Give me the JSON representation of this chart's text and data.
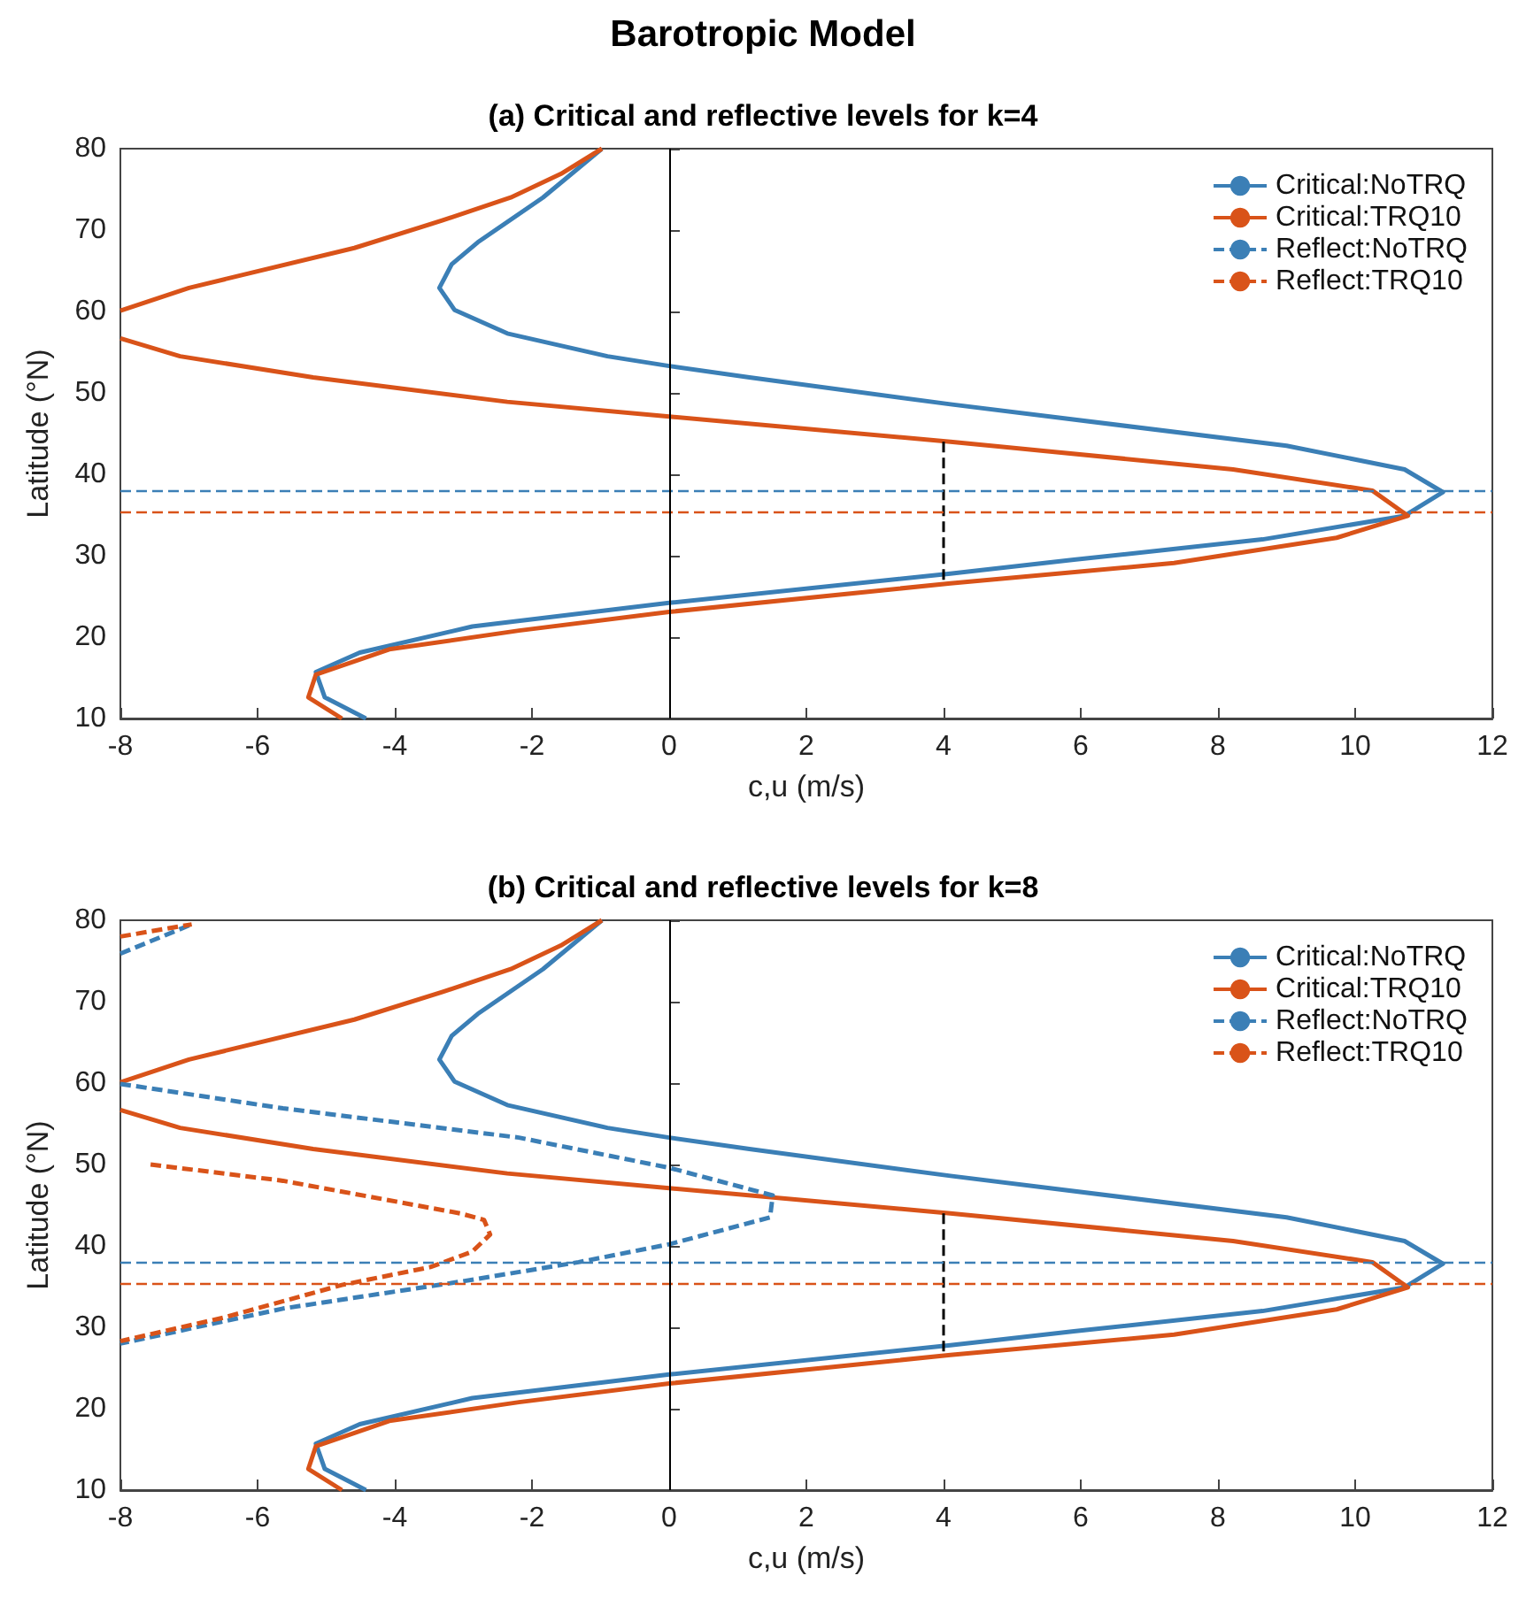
{
  "chart_data": [
    {
      "type": "other",
      "title": "Barotropic Model"
    },
    {
      "type": "line",
      "title": "(a) Critical and reflective levels for k=4",
      "xlabel": "c,u (m/s)",
      "ylabel": "Latitude (°N)",
      "xlim": [
        -8,
        12
      ],
      "xticks": [
        -8,
        -6,
        -4,
        -2,
        0,
        2,
        4,
        6,
        8,
        10,
        12
      ],
      "ylim": [
        10,
        80
      ],
      "yticks": [
        10,
        20,
        30,
        40,
        50,
        60,
        70,
        80
      ],
      "grid": false,
      "legend": "top right",
      "marker": "none",
      "series": [
        {
          "name": "Critical:NoTRQ",
          "color": "#3b7fb6",
          "line_style": "solid",
          "x": [
            -0.98,
            -1.84,
            -2.79,
            -3.17,
            -3.35,
            -3.13,
            -2.36,
            -0.9,
            0,
            1.17,
            4.1,
            9.0,
            10.72,
            11.28,
            10.72,
            8.65,
            5.9,
            4.1,
            0,
            -2.87,
            -4.51,
            -5.15,
            -5.02,
            -4.42
          ],
          "values": [
            80,
            74,
            68.5,
            65.8,
            62.9,
            60.2,
            57.3,
            54.5,
            53.3,
            51.9,
            48.6,
            43.5,
            40.6,
            37.8,
            34.9,
            32.0,
            29.5,
            27.8,
            24.2,
            21.3,
            18.1,
            15.7,
            12.6,
            10
          ]
        },
        {
          "name": "Critical:TRQ10",
          "color": "#d95319",
          "line_style": "solid",
          "x": [
            -0.98,
            -1.58,
            -2.31,
            -3.3,
            -4.59,
            -7.0,
            -8,
            null,
            -8,
            -7.13,
            -5.19,
            -2.36,
            0,
            4.1,
            8.22,
            10.25,
            10.77,
            9.73,
            7.36,
            4.1,
            0,
            -2.19,
            -4.08,
            -5.15,
            -5.26,
            -4.77
          ],
          "values": [
            80,
            76.9,
            74,
            71.2,
            67.8,
            62.9,
            60.1,
            null,
            56.7,
            54.5,
            51.9,
            48.9,
            47.1,
            44.0,
            40.6,
            38.0,
            34.9,
            32.2,
            29.1,
            26.6,
            23.1,
            20.8,
            18.5,
            15.4,
            12.6,
            10
          ]
        },
        {
          "name": "Reflect:NoTRQ",
          "color": "#3b7fb6",
          "line_style": "dashed"
        },
        {
          "name": "Reflect:TRQ10",
          "color": "#d95319",
          "line_style": "dashed"
        },
        {
          "color": "#000000",
          "line_style": "dashed",
          "x": [
            4,
            4
          ],
          "values": [
            44.0,
            26.6
          ]
        }
      ],
      "ref_lines": [
        {
          "axis": "y",
          "value": 37.9,
          "color": "#3b7fb6",
          "line_style": "dashed"
        },
        {
          "axis": "y",
          "value": 35.4,
          "color": "#d95319",
          "line_style": "dashed"
        },
        {
          "axis": "x",
          "value": 0,
          "color": "#000000",
          "line_style": "solid"
        }
      ]
    },
    {
      "type": "line",
      "title": "(b) Critical and reflective levels for k=8",
      "xlabel": "c,u (m/s)",
      "ylabel": "Latitude (°N)",
      "xlim": [
        -8,
        12
      ],
      "xticks": [
        -8,
        -6,
        -4,
        -2,
        0,
        2,
        4,
        6,
        8,
        10,
        12
      ],
      "ylim": [
        10,
        80
      ],
      "yticks": [
        10,
        20,
        30,
        40,
        50,
        60,
        70,
        80
      ],
      "grid": false,
      "legend": "top right",
      "marker": "none",
      "series": [
        {
          "name": "Critical:NoTRQ",
          "color": "#3b7fb6",
          "line_style": "solid",
          "x": [
            -0.98,
            -1.84,
            -2.79,
            -3.17,
            -3.35,
            -3.13,
            -2.36,
            -0.9,
            0,
            1.17,
            4.1,
            9.0,
            10.72,
            11.28,
            10.72,
            8.65,
            5.9,
            4.1,
            0,
            -2.87,
            -4.51,
            -5.15,
            -5.02,
            -4.42
          ],
          "values": [
            80,
            74,
            68.5,
            65.8,
            62.9,
            60.2,
            57.3,
            54.5,
            53.3,
            51.9,
            48.6,
            43.5,
            40.6,
            37.8,
            34.9,
            32.0,
            29.5,
            27.8,
            24.2,
            21.3,
            18.1,
            15.7,
            12.6,
            10
          ]
        },
        {
          "name": "Critical:TRQ10",
          "color": "#d95319",
          "line_style": "solid",
          "x": [
            -0.98,
            -1.58,
            -2.31,
            -3.3,
            -4.59,
            -7.0,
            -8,
            null,
            -8,
            -7.13,
            -5.19,
            -2.36,
            0,
            4.1,
            8.22,
            10.25,
            10.77,
            9.73,
            7.36,
            4.1,
            0,
            -2.19,
            -4.08,
            -5.15,
            -5.26,
            -4.77
          ],
          "values": [
            80,
            76.9,
            74,
            71.2,
            67.8,
            62.9,
            60.1,
            null,
            56.7,
            54.5,
            51.9,
            48.9,
            47.1,
            44.0,
            40.6,
            38.0,
            34.9,
            32.2,
            29.1,
            26.6,
            23.1,
            20.8,
            18.5,
            15.4,
            12.6,
            10
          ]
        },
        {
          "name": "Reflect:NoTRQ",
          "color": "#3b7fb6",
          "line_style": "dashed",
          "x": [
            -8,
            -6.96,
            null,
            -8,
            -5.63,
            -2.19,
            0,
            1.51,
            1.47,
            0,
            -1.32,
            -3.05,
            -5.63,
            -8
          ],
          "values": [
            75.9,
            79.5,
            null,
            59.9,
            56.9,
            53.3,
            49.6,
            46.2,
            43.5,
            40.2,
            38.0,
            35.6,
            32.3,
            28.0
          ]
        },
        {
          "name": "Reflect:TRQ10",
          "color": "#d95319",
          "line_style": "dashed",
          "x": [
            -8,
            -6.96,
            null,
            -7.56,
            -5.63,
            -3.05,
            -2.7,
            -2.61,
            -2.87,
            -3.48,
            -4.77,
            -6.49,
            -8
          ],
          "values": [
            78.0,
            79.5,
            null,
            50.0,
            48.0,
            44.0,
            43.2,
            41.4,
            39.3,
            37.4,
            35.2,
            31.2,
            28.3
          ]
        },
        {
          "color": "#000000",
          "line_style": "dashed",
          "x": [
            4,
            4
          ],
          "values": [
            44.0,
            26.6
          ]
        }
      ],
      "ref_lines": [
        {
          "axis": "y",
          "value": 37.9,
          "color": "#3b7fb6",
          "line_style": "dashed"
        },
        {
          "axis": "y",
          "value": 35.4,
          "color": "#d95319",
          "line_style": "dashed"
        },
        {
          "axis": "x",
          "value": 0,
          "color": "#000000",
          "line_style": "solid"
        }
      ]
    }
  ]
}
